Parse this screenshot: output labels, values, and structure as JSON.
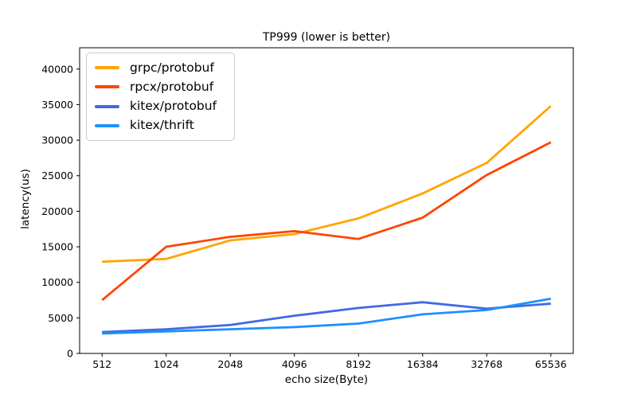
{
  "chart_data": {
    "type": "line",
    "title": "TP999 (lower is better)",
    "xlabel": "echo size(Byte)",
    "ylabel": "latency(us)",
    "categories": [
      "512",
      "1024",
      "2048",
      "4096",
      "8192",
      "16384",
      "32768",
      "65536"
    ],
    "yticks": [
      0,
      5000,
      10000,
      15000,
      20000,
      25000,
      30000,
      35000,
      40000
    ],
    "ylim": [
      0,
      43000
    ],
    "grid": false,
    "legend_position": "upper left",
    "axis_color": "#000000",
    "background_color": "#ffffff",
    "series": [
      {
        "name": "grpc/protobuf",
        "color": "#FFA500",
        "values": [
          12900,
          13300,
          15900,
          16800,
          19000,
          22500,
          26800,
          34800
        ]
      },
      {
        "name": "rpcx/protobuf",
        "color": "#FF4500",
        "values": [
          7500,
          15000,
          16400,
          17200,
          16100,
          19100,
          25100,
          29700
        ]
      },
      {
        "name": "kitex/protobuf",
        "color": "#4169E1",
        "values": [
          3000,
          3400,
          4000,
          5300,
          6400,
          7200,
          6300,
          7000
        ]
      },
      {
        "name": "kitex/thrift",
        "color": "#1E90FF",
        "values": [
          2800,
          3100,
          3400,
          3700,
          4200,
          5500,
          6100,
          7700
        ]
      }
    ]
  }
}
